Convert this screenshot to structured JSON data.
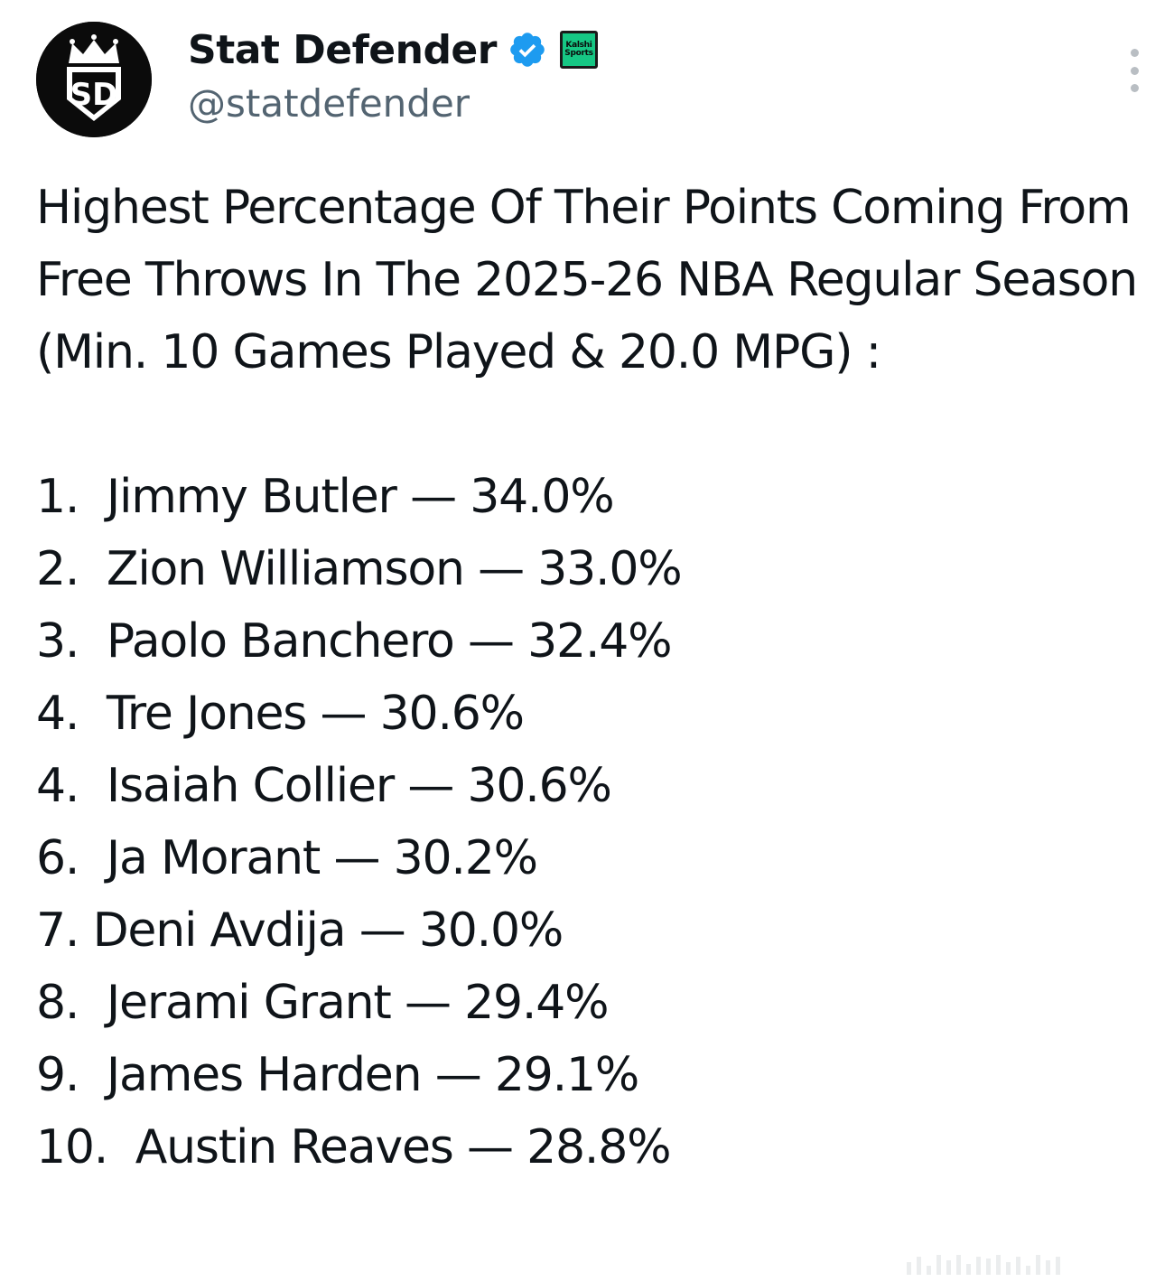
{
  "author": {
    "display_name": "Stat Defender",
    "handle": "@statdefender",
    "avatar_icon": "sd-crown-logo",
    "avatar_text": "SD",
    "verified_icon": "verified-badge-icon",
    "verified_color": "#1d9bf0",
    "affiliate": {
      "line1": "Kalshi",
      "line2": "Sports",
      "color": "#16c784"
    }
  },
  "menu": {
    "icon": "more-options-icon"
  },
  "tweet": {
    "headline": "Highest Percentage Of Their Points Coming From Free Throws In The 2025-26 NBA Regular Season (Min. 10 Games Played & 20.0 MPG) :",
    "ranking": [
      {
        "rank": "1.",
        "player": "Jimmy Butler",
        "value": "34.0%"
      },
      {
        "rank": "2.",
        "player": "Zion Williamson",
        "value": "33.0%"
      },
      {
        "rank": "3.",
        "player": "Paolo Banchero",
        "value": "32.4%"
      },
      {
        "rank": "4.",
        "player": "Tre Jones",
        "value": "30.6%"
      },
      {
        "rank": "4.",
        "player": "Isaiah Collier",
        "value": "30.6%"
      },
      {
        "rank": "6.",
        "player": "Ja Morant",
        "value": "30.2%"
      },
      {
        "rank": "7.",
        "player": "Deni Avdija",
        "value": "30.0%"
      },
      {
        "rank": "8.",
        "player": "Jerami Grant",
        "value": "29.4%"
      },
      {
        "rank": "9.",
        "player": "James Harden",
        "value": "29.1%"
      },
      {
        "rank": "10.",
        "player": "Austin Reaves",
        "value": "28.8%"
      }
    ],
    "separator": "—"
  }
}
